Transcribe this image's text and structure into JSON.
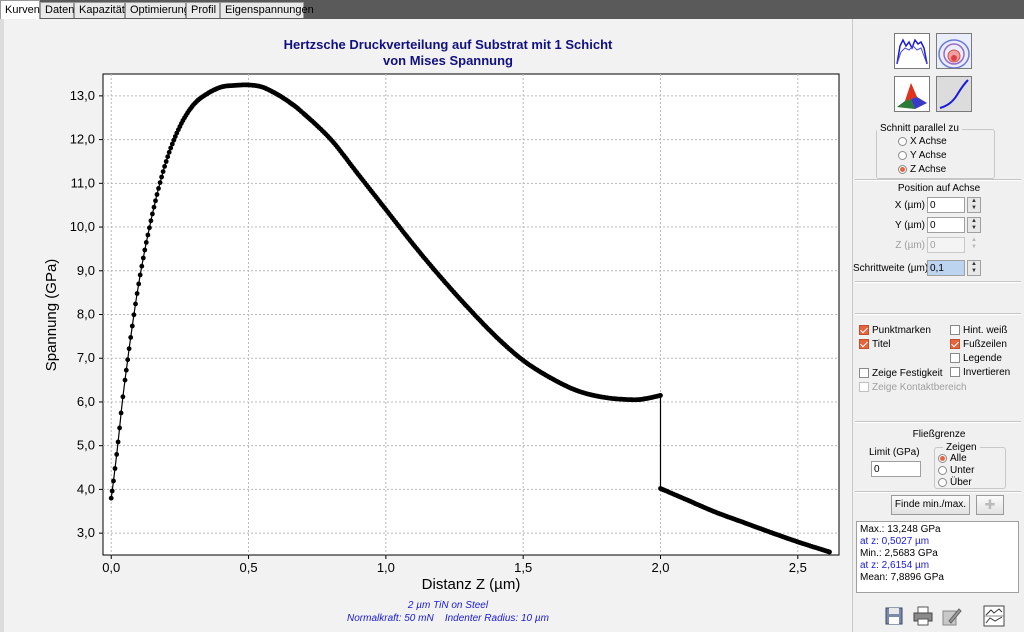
{
  "tabs": [
    {
      "label": "Kurven",
      "active": true
    },
    {
      "label": "Daten",
      "active": false
    },
    {
      "label": "Kapazität",
      "active": false
    },
    {
      "label": "Optimierung",
      "active": false
    },
    {
      "label": "Profil",
      "active": false
    },
    {
      "label": "Eigenspannungen",
      "active": false
    }
  ],
  "chart_data": {
    "type": "scatter",
    "title": "Hertzsche Druckverteilung auf Substrat mit 1 Schicht",
    "subtitle": "von Mises Spannung",
    "xlabel": "Distanz Z (µm)",
    "ylabel": "Spannung (GPa)",
    "xlim": [
      -0.03,
      2.65
    ],
    "ylim": [
      2.5,
      13.5
    ],
    "x_ticks": [
      0.0,
      0.5,
      1.0,
      1.5,
      2.0,
      2.5
    ],
    "x_tick_labels": [
      "0,0",
      "0,5",
      "1,0",
      "1,5",
      "2,0",
      "2,5"
    ],
    "y_ticks": [
      3,
      4,
      5,
      6,
      7,
      8,
      9,
      10,
      11,
      12,
      13
    ],
    "y_tick_labels": [
      "3,0",
      "4,0",
      "5,0",
      "6,0",
      "7,0",
      "8,0",
      "9,0",
      "10,0",
      "11,0",
      "12,0",
      "13,0"
    ],
    "grid": true,
    "series": [
      {
        "x": [
          0.0,
          0.02,
          0.05,
          0.1,
          0.15,
          0.2,
          0.25,
          0.3,
          0.35,
          0.4,
          0.45,
          0.5027,
          0.55,
          0.6,
          0.65,
          0.7,
          0.8,
          0.9,
          1.0,
          1.1,
          1.2,
          1.3,
          1.4,
          1.5,
          1.6,
          1.7,
          1.8,
          1.9,
          1.95,
          2.0
        ],
        "y": [
          3.8,
          4.8,
          6.5,
          8.7,
          10.3,
          11.5,
          12.3,
          12.8,
          13.05,
          13.2,
          13.24,
          13.248,
          13.2,
          13.05,
          12.85,
          12.6,
          12.0,
          11.2,
          10.4,
          9.6,
          8.85,
          8.15,
          7.5,
          6.95,
          6.55,
          6.25,
          6.1,
          6.05,
          6.08,
          6.15
        ]
      },
      {
        "x": [
          2.0,
          2.1,
          2.2,
          2.3,
          2.4,
          2.5,
          2.6154
        ],
        "y": [
          4.02,
          3.75,
          3.48,
          3.25,
          3.02,
          2.8,
          2.5683
        ]
      }
    ],
    "footer_line1": "2 µm TiN on Steel",
    "footer_line2": "Normalkraft: 50 mN    Indenter Radius: 10 µm"
  },
  "sidebar": {
    "view_icons": [
      "curves-icon",
      "contour-icon",
      "surface-3d-icon",
      "line-curve-icon"
    ],
    "schnitt": {
      "title": "Schnitt parallel zu",
      "options": [
        {
          "label": "X Achse",
          "checked": false
        },
        {
          "label": "Y Achse",
          "checked": false
        },
        {
          "label": "Z Achse",
          "checked": true
        }
      ]
    },
    "position": {
      "title": "Position auf Achse",
      "x_label": "X (µm)",
      "x_value": "0",
      "y_label": "Y (µm)",
      "y_value": "0",
      "z_label": "Z (µm)",
      "z_value": "0",
      "step_label": "Schrittweite (µm)",
      "step_value": "0,1"
    },
    "options": {
      "punktmarken": {
        "label": "Punktmarken",
        "checked": true
      },
      "titel": {
        "label": "Titel",
        "checked": true
      },
      "festigkeit": {
        "label": "Zeige Festigkeit",
        "checked": false
      },
      "kontakt": {
        "label": "Zeige Kontaktbereich",
        "checked": false
      },
      "hint": {
        "label": "Hint. weiß",
        "checked": false
      },
      "fusszeilen": {
        "label": "Fußzeilen",
        "checked": true
      },
      "legende": {
        "label": "Legende",
        "checked": false
      },
      "invertieren": {
        "label": "Invertieren",
        "checked": false
      }
    },
    "fliessgrenze": {
      "title": "Fließgrenze",
      "limit_label": "Limit (GPa)",
      "limit_value": "0",
      "zeigen_title": "Zeigen",
      "options": [
        {
          "label": "Alle",
          "checked": true
        },
        {
          "label": "Unter",
          "checked": false
        },
        {
          "label": "Über",
          "checked": false
        }
      ]
    },
    "find_button": "Finde min./max.",
    "results": {
      "max": "Max.: 13,248 GPa",
      "max_at": "at z: 0,5027 µm",
      "min": "Min.: 2,5683 GPa",
      "min_at": "at z: 2,6154 µm",
      "mean": "Mean: 7,8896 GPa"
    }
  }
}
